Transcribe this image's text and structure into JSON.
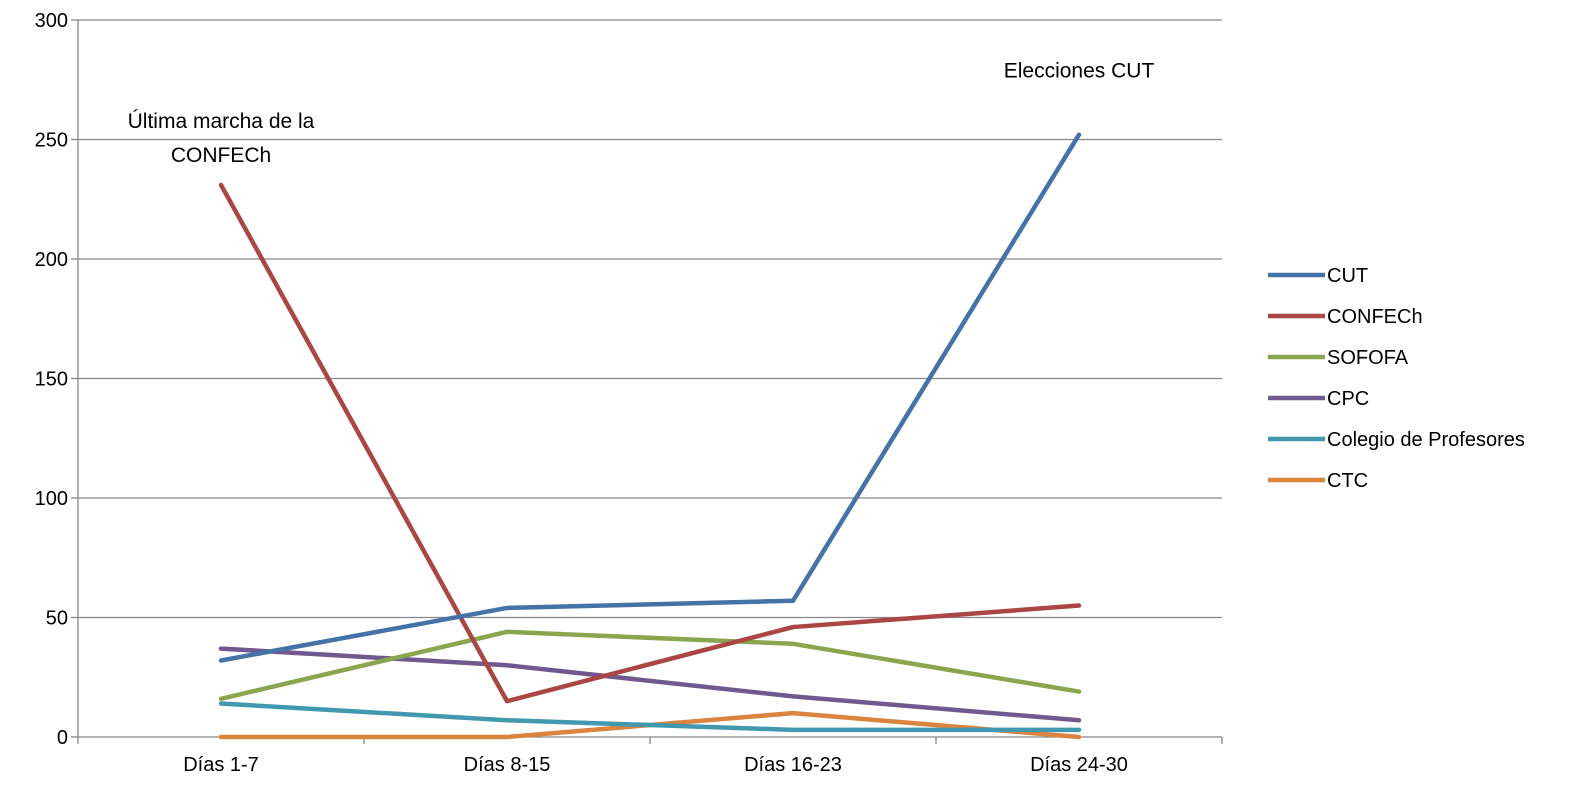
{
  "chart_data": {
    "type": "line",
    "categories": [
      "Días 1-7",
      "Días 8-15",
      "Días 16-23",
      "Días 24-30"
    ],
    "series": [
      {
        "name": "CUT",
        "color": "#4572A7",
        "values": [
          32,
          54,
          57,
          252
        ]
      },
      {
        "name": "CONFECh",
        "color": "#AA4643",
        "values": [
          231,
          15,
          46,
          55
        ]
      },
      {
        "name": "SOFOFA",
        "color": "#89A54E",
        "values": [
          16,
          44,
          39,
          19
        ]
      },
      {
        "name": "CPC",
        "color": "#71588F",
        "values": [
          37,
          30,
          17,
          7
        ]
      },
      {
        "name": "Colegio de Profesores",
        "color": "#4198AF",
        "values": [
          14,
          7,
          3,
          3
        ]
      },
      {
        "name": "CTC",
        "color": "#DB843D",
        "values": [
          0,
          0,
          10,
          0
        ]
      }
    ],
    "ylim": [
      0,
      300
    ],
    "yticks": [
      0,
      50,
      100,
      150,
      200,
      250,
      300
    ],
    "grid": true,
    "legend_position": "right",
    "annotations": [
      {
        "lines": [
          "Última marcha de la",
          "CONFECh"
        ],
        "category": "Días 1-7",
        "value": 231
      },
      {
        "lines": [
          "Elecciones CUT"
        ],
        "category": "Días 24-30",
        "value": 252
      }
    ]
  }
}
